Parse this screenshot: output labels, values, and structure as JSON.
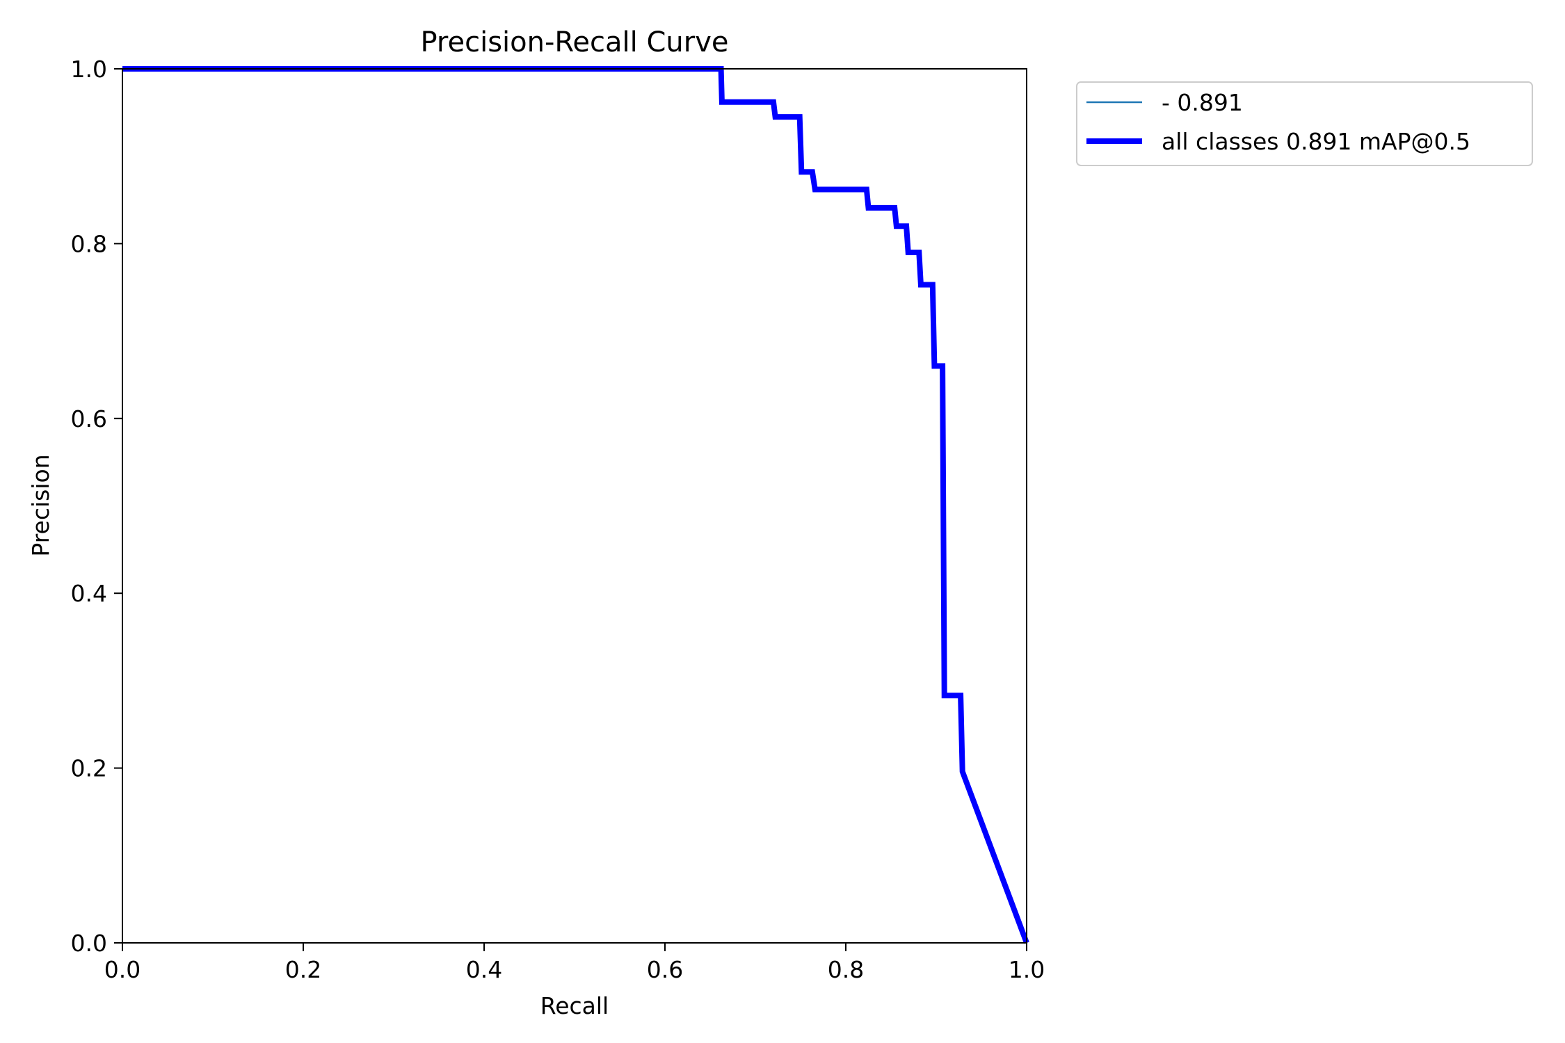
{
  "chart_data": {
    "type": "line",
    "title": "Precision-Recall Curve",
    "xlabel": "Recall",
    "ylabel": "Precision",
    "xlim": [
      0,
      1
    ],
    "ylim": [
      0,
      1
    ],
    "xticks": [
      "0.0",
      "0.2",
      "0.4",
      "0.6",
      "0.8",
      "1.0"
    ],
    "yticks": [
      "0.0",
      "0.2",
      "0.4",
      "0.6",
      "0.8",
      "1.0"
    ],
    "grid": false,
    "legend_position": "outside-top-right",
    "series": [
      {
        "name": "- 0.891",
        "color": "#1f77b4",
        "style": "thin",
        "x": [],
        "y": []
      },
      {
        "name": "all classes 0.891 mAP@0.5",
        "color": "#0000ff",
        "style": "thick",
        "x": [
          0.0,
          0.662,
          0.663,
          0.72,
          0.722,
          0.749,
          0.751,
          0.763,
          0.766,
          0.823,
          0.825,
          0.854,
          0.856,
          0.867,
          0.869,
          0.881,
          0.883,
          0.896,
          0.898,
          0.907,
          0.909,
          0.912,
          0.914,
          0.927,
          0.929,
          1.0
        ],
        "y": [
          1.0,
          1.0,
          0.962,
          0.962,
          0.945,
          0.945,
          0.882,
          0.882,
          0.862,
          0.862,
          0.841,
          0.841,
          0.82,
          0.82,
          0.79,
          0.79,
          0.753,
          0.753,
          0.66,
          0.66,
          0.283,
          0.283,
          0.283,
          0.283,
          0.196,
          0.0
        ]
      }
    ]
  }
}
